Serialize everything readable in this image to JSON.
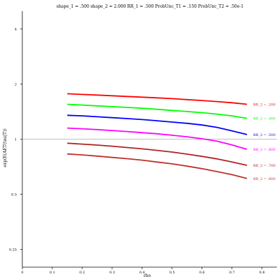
{
  "chart_data": {
    "type": "line",
    "title": "shape_1 = .500  shape_2 = 2.000  RR_1 = .500  ProbUnc_T1 = .150  ProbUnc_T2 = .50e-1",
    "xlabel": "rho",
    "ylabel": "exp(E(AET(tau|T))",
    "y_scale": "log",
    "xlim": [
      0,
      0.85
    ],
    "ylim": [
      0.2,
      5
    ],
    "x_ticks": [
      0,
      0.1,
      0.2,
      0.3,
      0.4,
      0.5,
      0.6,
      0.7,
      0.8
    ],
    "x_tick_labels": [
      "0",
      "0.1",
      "0.2",
      "0.3",
      "0.4",
      "0.5",
      "0.6",
      "0.7",
      "0.8"
    ],
    "y_ticks": [
      0.25,
      0.5,
      1,
      2,
      4
    ],
    "y_tick_labels": [
      "0.25",
      "0.5",
      "1",
      "2",
      "4"
    ],
    "reference_line_y": 1,
    "grid": false,
    "legend": "inline labels at right end of each line",
    "x": [
      0.15,
      0.2,
      0.25,
      0.3,
      0.35,
      0.4,
      0.45,
      0.5,
      0.55,
      0.6,
      0.65,
      0.7,
      0.75
    ],
    "series": [
      {
        "name": "RR_2 = .200",
        "color": "#ff0000",
        "values": [
          1.77,
          1.755,
          1.74,
          1.725,
          1.71,
          1.695,
          1.68,
          1.665,
          1.645,
          1.625,
          1.605,
          1.58,
          1.55
        ]
      },
      {
        "name": "RR_2 = .400",
        "color": "#00ff00",
        "values": [
          1.55,
          1.535,
          1.52,
          1.505,
          1.49,
          1.475,
          1.455,
          1.435,
          1.415,
          1.395,
          1.37,
          1.34,
          1.3
        ]
      },
      {
        "name": "RR_2 = .500",
        "color": "#0000ff",
        "values": [
          1.35,
          1.34,
          1.325,
          1.31,
          1.295,
          1.28,
          1.26,
          1.24,
          1.22,
          1.195,
          1.16,
          1.11,
          1.06
        ]
      },
      {
        "name": "RR_2 = .600",
        "color": "#ff00ff",
        "values": [
          1.15,
          1.14,
          1.128,
          1.115,
          1.1,
          1.085,
          1.07,
          1.05,
          1.03,
          1.005,
          0.975,
          0.93,
          0.88
        ]
      },
      {
        "name": "RR_2 = .700",
        "color": "#b22222",
        "values": [
          0.95,
          0.94,
          0.928,
          0.915,
          0.9,
          0.885,
          0.868,
          0.85,
          0.828,
          0.805,
          0.78,
          0.75,
          0.72
        ]
      },
      {
        "name": "RR_2 = .800",
        "color": "#c0302a",
        "values": [
          0.83,
          0.82,
          0.808,
          0.795,
          0.782,
          0.768,
          0.75,
          0.733,
          0.712,
          0.69,
          0.665,
          0.64,
          0.61
        ]
      }
    ]
  }
}
